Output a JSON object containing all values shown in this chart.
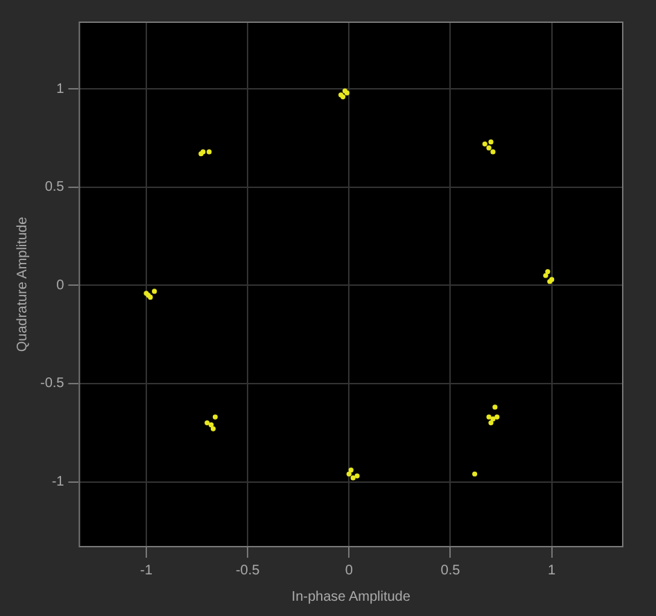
{
  "chart_data": {
    "type": "scatter",
    "xlabel": "In-phase Amplitude",
    "ylabel": "Quadrature Amplitude",
    "xlim": [
      -1.33,
      1.35
    ],
    "ylim": [
      -1.33,
      1.34
    ],
    "xticks": [
      -1,
      -0.5,
      0,
      0.5,
      1
    ],
    "yticks": [
      -1,
      -0.5,
      0,
      0.5,
      1
    ],
    "grid": true,
    "marker": "circle",
    "series": [
      {
        "color": "#e8e820",
        "x": [
          -0.04,
          -0.02,
          -0.03,
          -0.01,
          0.67,
          0.69,
          0.7,
          0.71,
          0.97,
          0.99,
          1.0,
          0.98,
          0.69,
          0.71,
          0.73,
          0.7,
          0.72,
          0.0,
          0.02,
          0.04,
          0.01,
          -0.68,
          -0.67,
          -0.7,
          -0.66,
          -1.0,
          -0.98,
          -0.96,
          -0.99,
          -0.73,
          -0.72,
          -0.69,
          0.62
        ],
        "values": [
          0.97,
          0.99,
          0.96,
          0.98,
          0.72,
          0.7,
          0.73,
          0.68,
          0.05,
          0.02,
          0.03,
          0.07,
          -0.67,
          -0.68,
          -0.67,
          -0.7,
          -0.62,
          -0.96,
          -0.98,
          -0.97,
          -0.94,
          -0.71,
          -0.73,
          -0.7,
          -0.67,
          -0.04,
          -0.06,
          -0.03,
          -0.05,
          0.67,
          0.68,
          0.68,
          -0.96
        ]
      }
    ]
  }
}
